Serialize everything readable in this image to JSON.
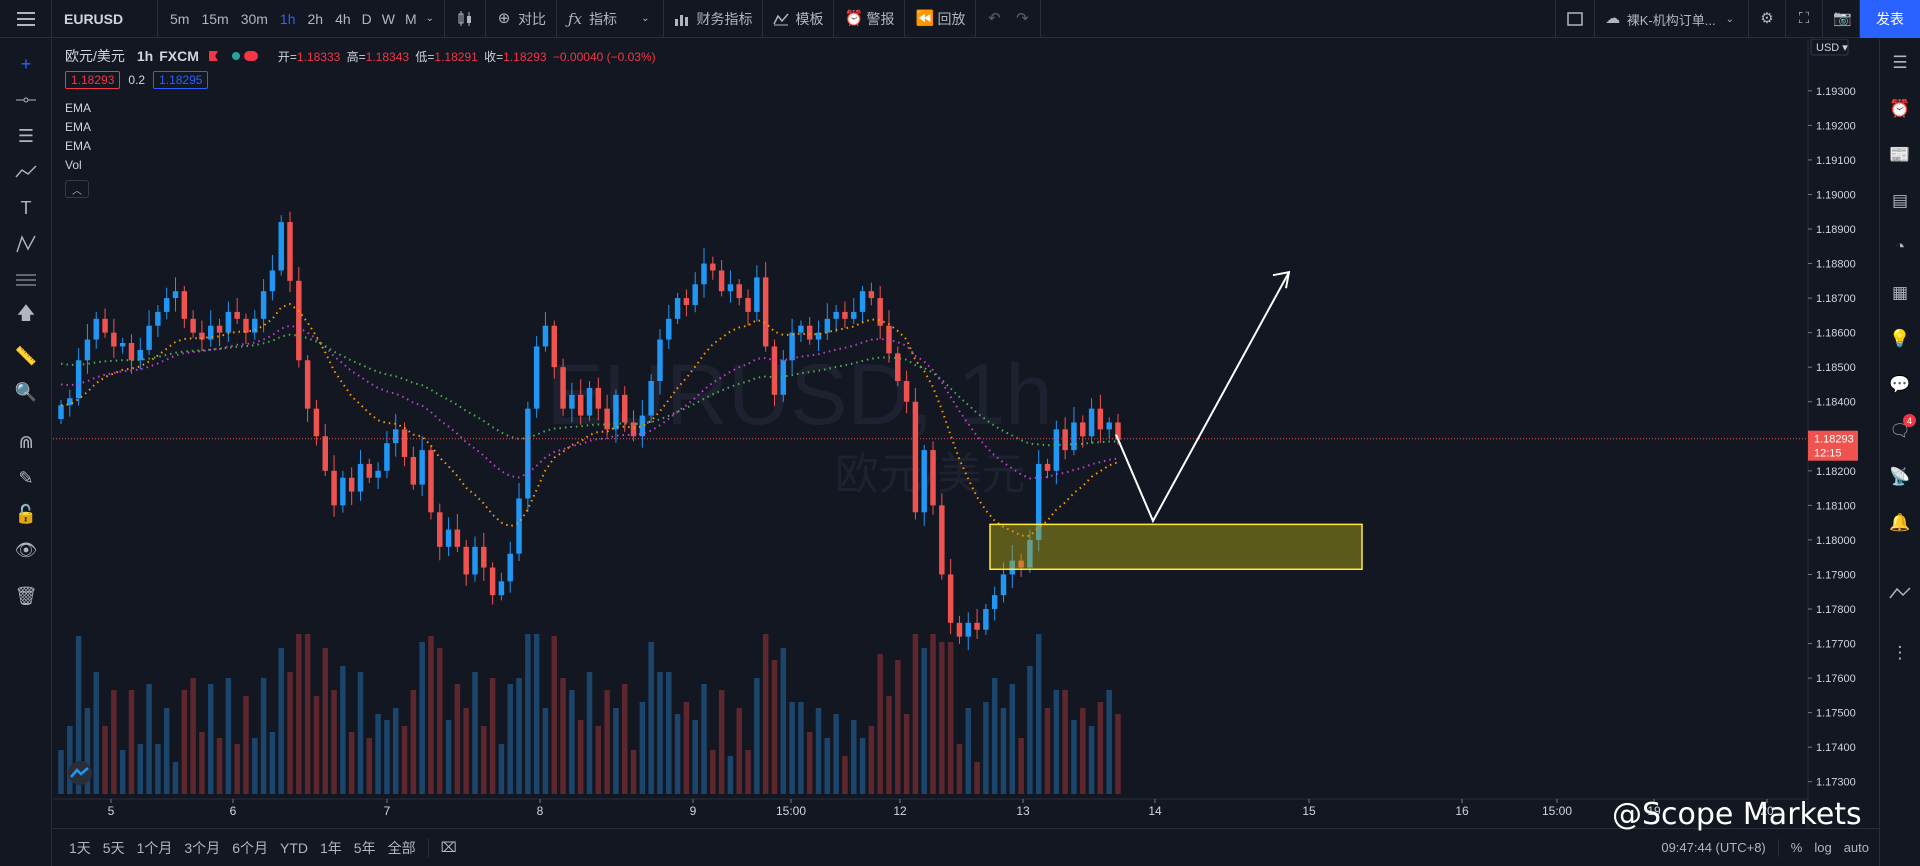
{
  "toolbar": {
    "symbol": "EURUSD",
    "intervals": [
      "5m",
      "15m",
      "30m",
      "1h",
      "2h",
      "4h",
      "D",
      "W",
      "M"
    ],
    "active_interval": "1h",
    "compare_label": "对比",
    "indicators_label": "指标",
    "financials_label": "财务指标",
    "templates_label": "模板",
    "alert_label": "警报",
    "replay_label": "回放",
    "layout_name": "裸K-机构订单...",
    "publish_label": "发表"
  },
  "legend": {
    "title": "欧元/美元",
    "interval": "1h",
    "exchange": "FXCM",
    "open_label": "开=",
    "open": "1.18333",
    "high_label": "高=",
    "high": "1.18343",
    "low_label": "低=",
    "low": "1.18291",
    "close_label": "收=",
    "close": "1.18293",
    "change": "−0.00040 (−0.03%)",
    "bid": "1.18293",
    "spread": "0.2",
    "ask": "1.18295",
    "indicators": [
      "EMA",
      "EMA",
      "EMA",
      "Vol"
    ]
  },
  "watermark": {
    "symbol": "EURUSD, 1h",
    "name": "欧元/美元"
  },
  "price_axis": {
    "currency": "USD",
    "current_price": "1.18293",
    "countdown": "12:15",
    "labels": [
      "1.19300",
      "1.19200",
      "1.19100",
      "1.19000",
      "1.18900",
      "1.18800",
      "1.18700",
      "1.18600",
      "1.18500",
      "1.18400",
      "1.18200",
      "1.18100",
      "1.18000",
      "1.17900",
      "1.17800",
      "1.17700",
      "1.17600",
      "1.17500",
      "1.17400",
      "1.17300"
    ]
  },
  "time_axis": {
    "labels": [
      "5",
      "6",
      "7",
      "8",
      "9",
      "15:00",
      "12",
      "13",
      "14",
      "15",
      "16",
      "15:00",
      "19",
      "20"
    ]
  },
  "bottom": {
    "ranges": [
      "1天",
      "5天",
      "1个月",
      "3个月",
      "6个月",
      "YTD",
      "1年",
      "5年",
      "全部"
    ],
    "time": "09:47:44 (UTC+8)",
    "percent": "%",
    "log": "log",
    "auto": "auto"
  },
  "overlay_logo": "@Scope Markets",
  "notifications": "4",
  "colors": {
    "up": "#2196f3",
    "down": "#ef5350",
    "ema_fast": "#ff9800",
    "ema_mid": "#c040d0",
    "ema_slow": "#4caf50",
    "zone": "#ffeb3b",
    "accent": "#2962ff"
  },
  "chart_data": {
    "type": "candlestick",
    "price_range": [
      1.1725,
      1.1945
    ],
    "close_series": [
      1.1839,
      1.1841,
      1.1852,
      1.1858,
      1.1864,
      1.186,
      1.1856,
      1.1857,
      1.1852,
      1.1855,
      1.1862,
      1.1866,
      1.187,
      1.1872,
      1.1864,
      1.186,
      1.1858,
      1.1862,
      1.186,
      1.1866,
      1.1864,
      1.186,
      1.1864,
      1.1872,
      1.1878,
      1.1892,
      1.1875,
      1.1852,
      1.1838,
      1.183,
      1.182,
      1.181,
      1.1818,
      1.1814,
      1.1822,
      1.1818,
      1.182,
      1.1828,
      1.1832,
      1.1824,
      1.1816,
      1.1826,
      1.1808,
      1.1798,
      1.1803,
      1.1798,
      1.179,
      1.1798,
      1.1792,
      1.1784,
      1.1788,
      1.1796,
      1.1812,
      1.1838,
      1.1856,
      1.1862,
      1.185,
      1.1838,
      1.1842,
      1.1836,
      1.1844,
      1.1838,
      1.1832,
      1.1842,
      1.1834,
      1.183,
      1.1836,
      1.1846,
      1.1858,
      1.1864,
      1.187,
      1.1868,
      1.1874,
      1.188,
      1.1878,
      1.1872,
      1.1874,
      1.187,
      1.1866,
      1.1876,
      1.1856,
      1.1842,
      1.1852,
      1.186,
      1.1862,
      1.1858,
      1.186,
      1.1864,
      1.1866,
      1.1864,
      1.1866,
      1.1872,
      1.187,
      1.1862,
      1.1854,
      1.1846,
      1.184,
      1.1808,
      1.1826,
      1.181,
      1.179,
      1.1776,
      1.1772,
      1.1776,
      1.1774,
      1.178,
      1.1784,
      1.179,
      1.1794,
      1.1792,
      1.18,
      1.1822,
      1.182,
      1.1832,
      1.1826,
      1.1834,
      1.183,
      1.1838,
      1.1832,
      1.1834,
      1.1829
    ]
  }
}
